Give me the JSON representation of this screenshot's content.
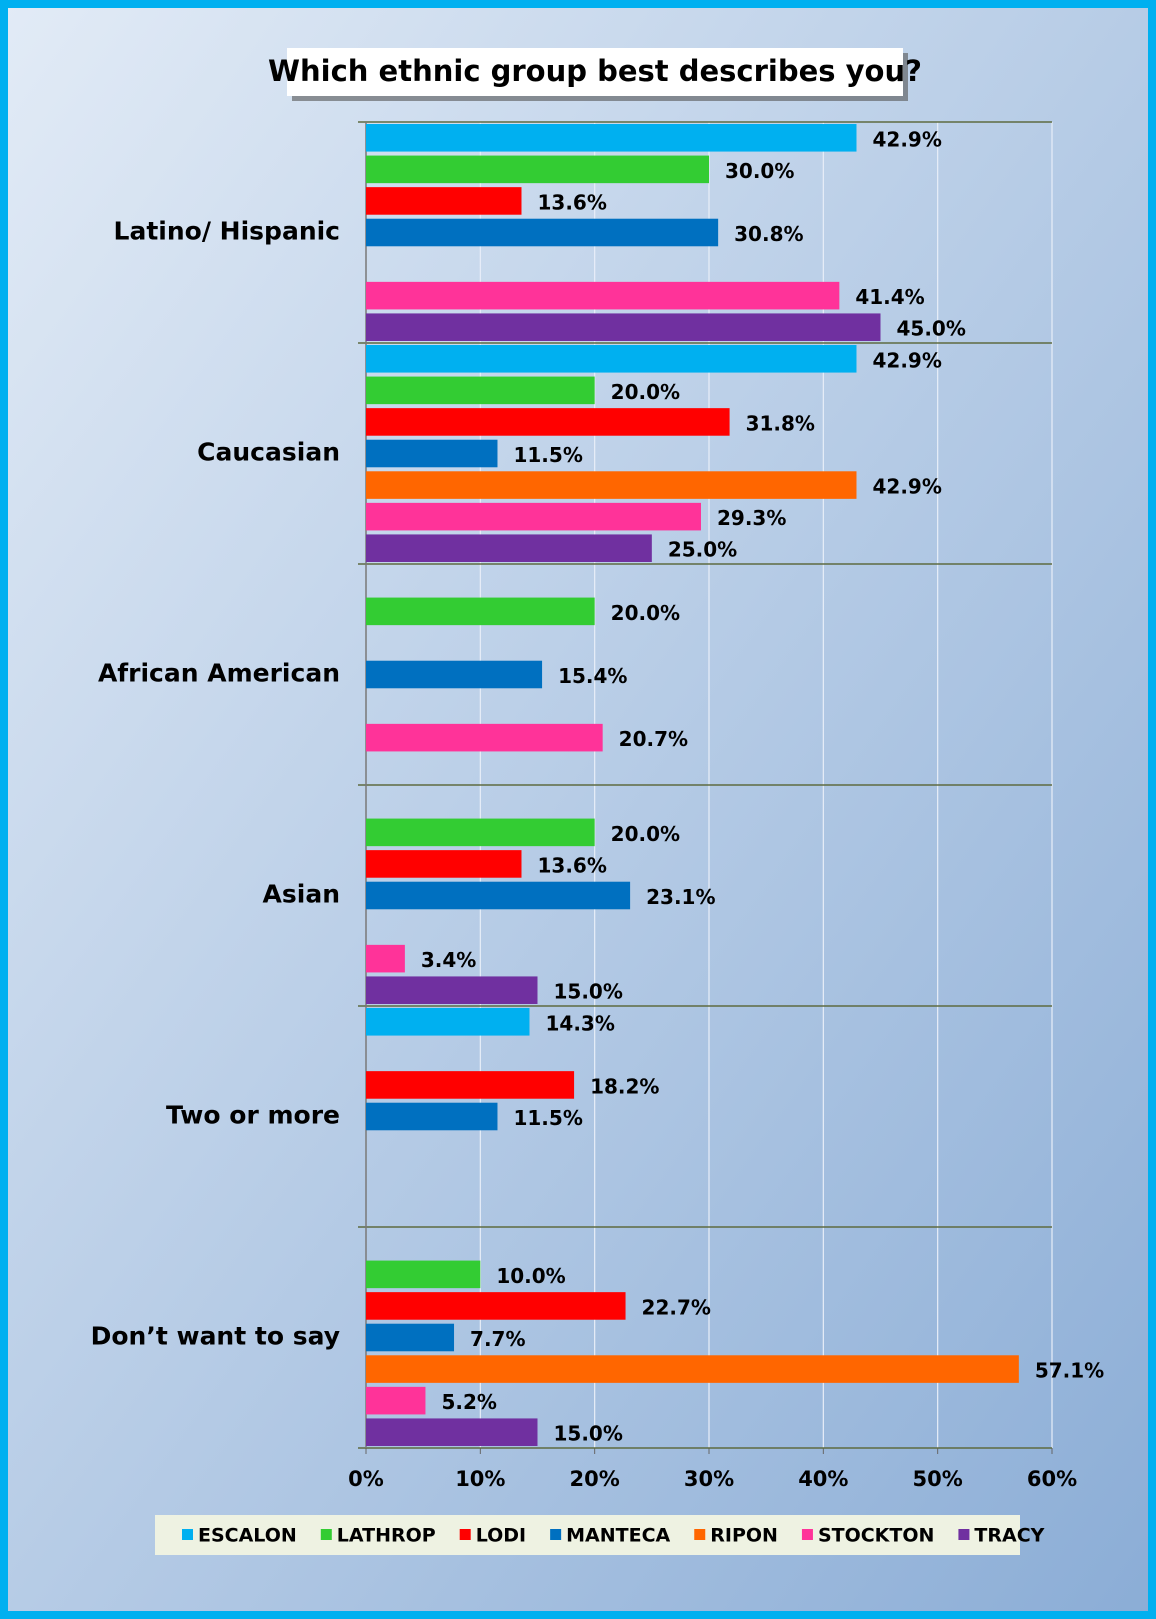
{
  "chart_data": {
    "type": "bar",
    "orientation": "horizontal",
    "title": "Which ethnic group best describes you?",
    "categories": [
      "Latino/ Hispanic",
      "Caucasian",
      "African American",
      "Asian",
      "Two or more",
      "Don’t want to say"
    ],
    "series": [
      {
        "name": "ESCALON",
        "color": "#00b0f0",
        "values": [
          42.9,
          42.9,
          null,
          null,
          14.3,
          null
        ],
        "value_labels": [
          "42.9%",
          "42.9%",
          null,
          null,
          "14.3%",
          null
        ]
      },
      {
        "name": "LATHROP",
        "color": "#33cc33",
        "values": [
          30.0,
          20.0,
          20.0,
          20.0,
          null,
          10.0
        ],
        "value_labels": [
          "30.0%",
          "20.0%",
          "20.0%",
          "20.0%",
          null,
          "10.0%"
        ]
      },
      {
        "name": "LODI",
        "color": "#ff0000",
        "values": [
          13.6,
          31.8,
          null,
          13.6,
          18.2,
          22.7
        ],
        "value_labels": [
          "13.6%",
          "31.8%",
          null,
          "13.6%",
          "18.2%",
          "22.7%"
        ]
      },
      {
        "name": "MANTECA",
        "color": "#0070c0",
        "values": [
          30.8,
          11.5,
          15.4,
          23.1,
          11.5,
          7.7
        ],
        "value_labels": [
          "30.8%",
          "11.5%",
          "15.4%",
          "23.1%",
          "11.5%",
          "7.7%"
        ]
      },
      {
        "name": "RIPON",
        "color": "#ff6600",
        "values": [
          null,
          42.9,
          null,
          null,
          null,
          57.1
        ],
        "value_labels": [
          null,
          "42.9%",
          null,
          null,
          null,
          "57.1%"
        ]
      },
      {
        "name": "STOCKTON",
        "color": "#ff3399",
        "values": [
          41.4,
          29.3,
          20.7,
          3.4,
          null,
          5.2
        ],
        "value_labels": [
          "41.4%",
          "29.3%",
          "20.7%",
          "3.4%",
          null,
          "5.2%"
        ]
      },
      {
        "name": "TRACY",
        "color": "#7030a0",
        "values": [
          45.0,
          25.0,
          null,
          15.0,
          null,
          15.0
        ],
        "value_labels": [
          "45.0%",
          "25.0%",
          null,
          "15.0%",
          null,
          "15.0%"
        ]
      }
    ],
    "xlim": [
      0,
      60
    ],
    "xticks": [
      {
        "value": 0,
        "label": "0%"
      },
      {
        "value": 10,
        "label": "10%"
      },
      {
        "value": 20,
        "label": "20%"
      },
      {
        "value": 30,
        "label": "30%"
      },
      {
        "value": 40,
        "label": "40%"
      },
      {
        "value": 50,
        "label": "50%"
      },
      {
        "value": 60,
        "label": "60%"
      }
    ],
    "grid": true,
    "legend": "bottom"
  }
}
